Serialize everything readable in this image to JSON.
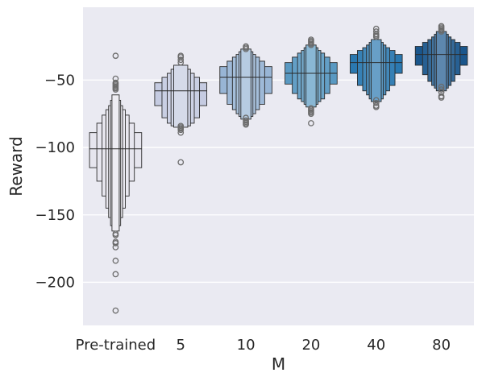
{
  "chart_data": {
    "type": "boxen",
    "title": "",
    "xlabel": "M",
    "ylabel": "Reward",
    "ylim": [
      -232,
      4
    ],
    "yticks": [
      -50,
      -100,
      -150,
      -200
    ],
    "ytick_labels": [
      "−50",
      "−100",
      "−150",
      "−200"
    ],
    "grid": true,
    "categories": [
      "Pre-trained",
      "5",
      "10",
      "20",
      "40",
      "80"
    ],
    "colors": [
      "#e6e5ee",
      "#c5cbe1",
      "#98b5d5",
      "#5999c2",
      "#2a78b0",
      "#1a568c"
    ],
    "series": [
      {
        "median": -101,
        "levels": [
          [
            -89,
            -115
          ],
          [
            -82,
            -125
          ],
          [
            -76,
            -136
          ],
          [
            -72,
            -145
          ],
          [
            -69,
            -152
          ],
          [
            -65,
            -158
          ],
          [
            -61,
            -162
          ]
        ],
        "outliers": [
          -32,
          -49,
          -52,
          -53,
          -54,
          -55,
          -56,
          -57,
          -164,
          -165,
          -170,
          -171,
          -174,
          -184,
          -194,
          -221
        ]
      },
      {
        "median": -58,
        "levels": [
          [
            -52,
            -69
          ],
          [
            -48,
            -78
          ],
          [
            -45,
            -82
          ],
          [
            -42,
            -84
          ],
          [
            -39,
            -85
          ]
        ],
        "outliers": [
          -32,
          -33,
          -35,
          -37,
          -84,
          -85,
          -86,
          -87,
          -89,
          -111
        ]
      },
      {
        "median": -48,
        "levels": [
          [
            -40,
            -60
          ],
          [
            -36,
            -68
          ],
          [
            -33,
            -72
          ],
          [
            -31,
            -75
          ],
          [
            -29,
            -77
          ],
          [
            -27,
            -79
          ]
        ],
        "outliers": [
          -25,
          -26,
          -27,
          -78,
          -80,
          -81,
          -82,
          -83
        ]
      },
      {
        "median": -45,
        "levels": [
          [
            -37,
            -53
          ],
          [
            -33,
            -60
          ],
          [
            -30,
            -64
          ],
          [
            -28,
            -66
          ],
          [
            -26,
            -68
          ],
          [
            -24,
            -70
          ]
        ],
        "outliers": [
          -20,
          -21,
          -22,
          -23,
          -24,
          -71,
          -72,
          -73,
          -74,
          -75,
          -82
        ]
      },
      {
        "median": -37,
        "levels": [
          [
            -31,
            -45
          ],
          [
            -28,
            -54
          ],
          [
            -26,
            -58
          ],
          [
            -24,
            -61
          ],
          [
            -22,
            -64
          ],
          [
            -20,
            -66
          ]
        ],
        "outliers": [
          -12,
          -14,
          -16,
          -17,
          -18,
          -65,
          -67,
          -69,
          -70
        ]
      },
      {
        "median": -31,
        "levels": [
          [
            -25,
            -39
          ],
          [
            -22,
            -46
          ],
          [
            -20,
            -51
          ],
          [
            -18,
            -54
          ],
          [
            -16,
            -56
          ],
          [
            -14,
            -58
          ]
        ],
        "outliers": [
          -10,
          -11,
          -12,
          -13,
          -14,
          -55,
          -57,
          -59,
          -62,
          -63
        ]
      }
    ]
  }
}
